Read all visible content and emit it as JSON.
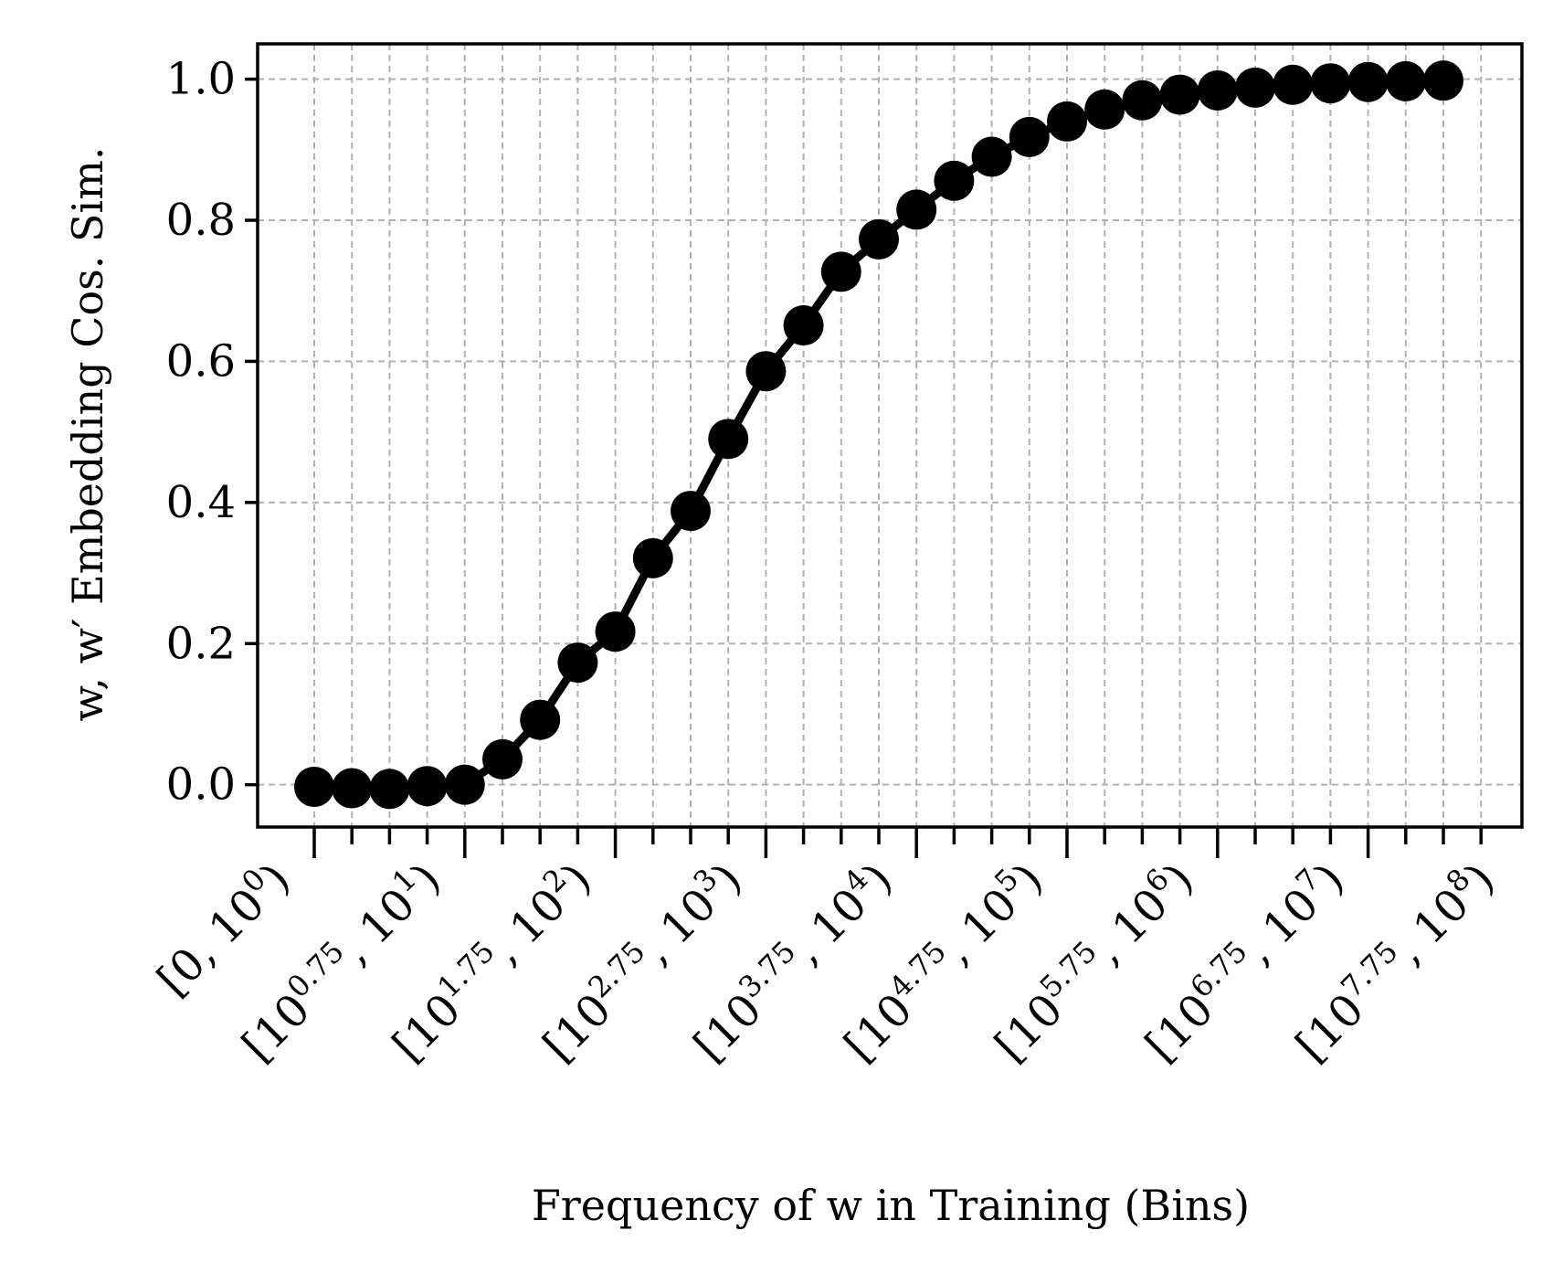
{
  "chart_data": {
    "type": "line",
    "xlabel": "Frequency of w in Training (Bins)",
    "ylabel": "w, w′ Embedding Cos. Sim.",
    "ylim": [
      -0.06,
      1.05
    ],
    "yticks": [
      0.0,
      0.2,
      0.4,
      0.6,
      0.8,
      1.0
    ],
    "ytick_labels": [
      "0.0",
      "0.2",
      "0.4",
      "0.6",
      "0.8",
      "1.0"
    ],
    "grid": true,
    "color": "#000000",
    "x_major_tick_labels": [
      "[0, 10^0)",
      "[10^0.75, 10^1)",
      "[10^1.75, 10^2)",
      "[10^2.75, 10^3)",
      "[10^3.75, 10^4)",
      "[10^4.75, 10^5)",
      "[10^5.75, 10^6)",
      "[10^6.75, 10^7)",
      "[10^7.75, 10^8)"
    ],
    "series": [
      {
        "values": [
          -0.003,
          -0.005,
          -0.006,
          -0.002,
          0.0,
          0.036,
          0.092,
          0.173,
          0.217,
          0.321,
          0.388,
          0.49,
          0.586,
          0.651,
          0.727,
          0.773,
          0.815,
          0.856,
          0.89,
          0.918,
          0.94,
          0.957,
          0.97,
          0.978,
          0.984,
          0.988,
          0.992,
          0.994,
          0.996,
          0.997,
          0.998
        ]
      }
    ]
  }
}
